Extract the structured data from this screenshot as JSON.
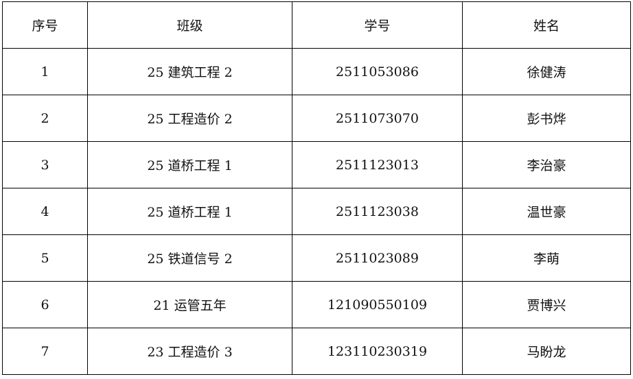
{
  "headers": [
    "序号",
    "班级",
    "学号",
    "姓名"
  ],
  "rows": [
    [
      "1",
      "25 建筑工程 2",
      "2511053086",
      "徐健涛"
    ],
    [
      "2",
      "25 工程造价 2",
      "2511073070",
      "彭书烨"
    ],
    [
      "3",
      "25 道桥工程 1",
      "2511123013",
      "李治豪"
    ],
    [
      "4",
      "25 道桥工程 1",
      "2511123038",
      "温世豪"
    ],
    [
      "5",
      "25 铁道信号 2",
      "2511023089",
      "李萌"
    ],
    [
      "6",
      "21 运管五年",
      "121090550109",
      "贾博兴"
    ],
    [
      "7",
      "23 工程造价 3",
      "123110230319",
      "马盼龙"
    ]
  ]
}
